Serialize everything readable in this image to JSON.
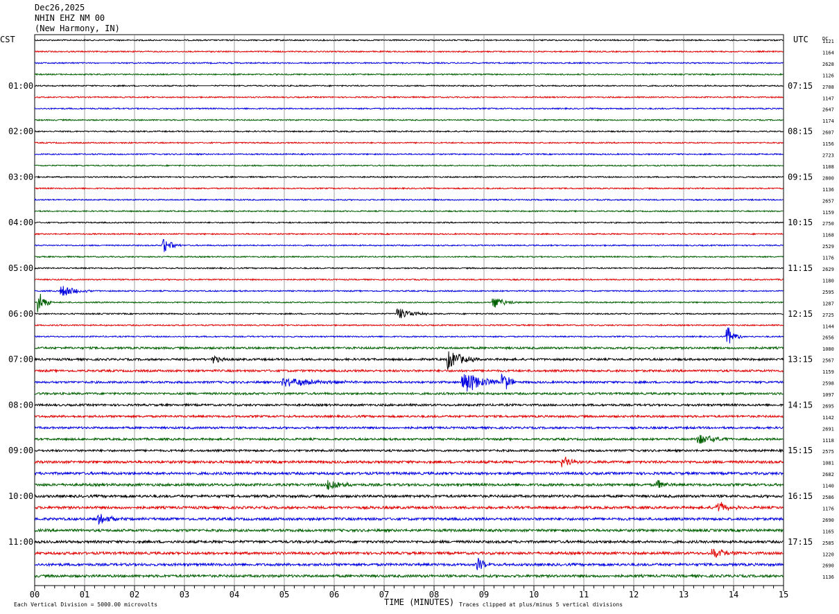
{
  "header": {
    "date": "Dec26,2025",
    "station": "NHIN EHZ NM 00",
    "location": "(New Harmony, IN)"
  },
  "left_tz": "CST",
  "right_tz": "UTC",
  "dc_label": "DC",
  "footer": {
    "scale": "Each Vertical Division = 5000.00 microvolts",
    "xlabel": "TIME (MINUTES)",
    "clip_note": "Traces clipped at plus/minus 5 vertical divisions"
  },
  "colors": {
    "cycle": [
      "#000000",
      "#e00000",
      "#0000e0",
      "#006000"
    ],
    "grid": "#888888"
  },
  "chart_data": {
    "type": "line",
    "title": "NHIN EHZ NM 00",
    "xlabel": "TIME (MINUTES)",
    "x_range": [
      0,
      15
    ],
    "x_ticks": [
      "00",
      "01",
      "02",
      "03",
      "04",
      "05",
      "06",
      "07",
      "08",
      "09",
      "10",
      "11",
      "12",
      "13",
      "14",
      "15"
    ],
    "trace_interval_minutes": 15,
    "trace_count": 48,
    "left_hour_labels": [
      "01:00",
      "02:00",
      "03:00",
      "04:00",
      "05:00",
      "06:00",
      "07:00",
      "08:00",
      "09:00",
      "10:00",
      "11:00"
    ],
    "right_hour_labels": [
      "07:15",
      "08:15",
      "09:15",
      "10:15",
      "11:15",
      "12:15",
      "13:15",
      "14:15",
      "15:15",
      "16:15",
      "17:15"
    ],
    "dc_offsets": [
      "1121",
      "1164",
      "2628",
      "1126",
      "2708",
      "1147",
      "2647",
      "1174",
      "2607",
      "1156",
      "2723",
      "1108",
      "2800",
      "1136",
      "2657",
      "1159",
      "2750",
      "1168",
      "2529",
      "1176",
      "2629",
      "1180",
      "2595",
      "1287",
      "2725",
      "1144",
      "2656",
      "1080",
      "2567",
      "1159",
      "2598",
      "1097",
      "2695",
      "1142",
      "2691",
      "1118",
      "2575",
      "1081",
      "2682",
      "1140",
      "2586",
      "1176",
      "2690",
      "1165",
      "2585",
      "1220",
      "2690",
      "1136"
    ],
    "events": [
      {
        "trace": 2,
        "time_min": 1.4,
        "note": "flat gap"
      },
      {
        "trace": 4,
        "time_min": 3.4,
        "note": "flat gap"
      },
      {
        "trace": 18,
        "time_min": 2.6,
        "amp": 2.2,
        "dur": 0.35
      },
      {
        "trace": 22,
        "time_min": 0.55,
        "amp": 2.0,
        "dur": 0.6
      },
      {
        "trace": 23,
        "time_min": 0.1,
        "amp": 3.5,
        "dur": 0.25
      },
      {
        "trace": 23,
        "time_min": 9.2,
        "amp": 1.8,
        "dur": 0.5
      },
      {
        "trace": 24,
        "time_min": 7.3,
        "amp": 1.8,
        "dur": 0.6
      },
      {
        "trace": 26,
        "time_min": 13.9,
        "amp": 3.0,
        "dur": 0.3
      },
      {
        "trace": 28,
        "time_min": 3.6,
        "amp": 1.6,
        "dur": 0.3
      },
      {
        "trace": 28,
        "time_min": 8.3,
        "amp": 3.0,
        "dur": 0.6
      },
      {
        "trace": 30,
        "time_min": 8.6,
        "amp": 4.0,
        "dur": 0.7
      },
      {
        "trace": 30,
        "time_min": 9.4,
        "amp": 3.2,
        "dur": 0.3
      },
      {
        "trace": 30,
        "time_min": 5.0,
        "amp": 1.5,
        "dur": 1.5
      },
      {
        "trace": 35,
        "time_min": 13.3,
        "amp": 1.6,
        "dur": 0.8
      },
      {
        "trace": 37,
        "time_min": 10.6,
        "amp": 2.0,
        "dur": 0.3
      },
      {
        "trace": 39,
        "time_min": 5.9,
        "amp": 2.2,
        "dur": 0.5
      },
      {
        "trace": 39,
        "time_min": 12.5,
        "amp": 1.6,
        "dur": 0.3
      },
      {
        "trace": 41,
        "time_min": 13.7,
        "amp": 2.0,
        "dur": 0.4
      },
      {
        "trace": 42,
        "time_min": 1.3,
        "amp": 1.4,
        "dur": 0.8
      },
      {
        "trace": 45,
        "time_min": 13.6,
        "amp": 1.8,
        "dur": 0.5
      },
      {
        "trace": 46,
        "time_min": 8.9,
        "amp": 2.0,
        "dur": 0.25
      }
    ]
  }
}
